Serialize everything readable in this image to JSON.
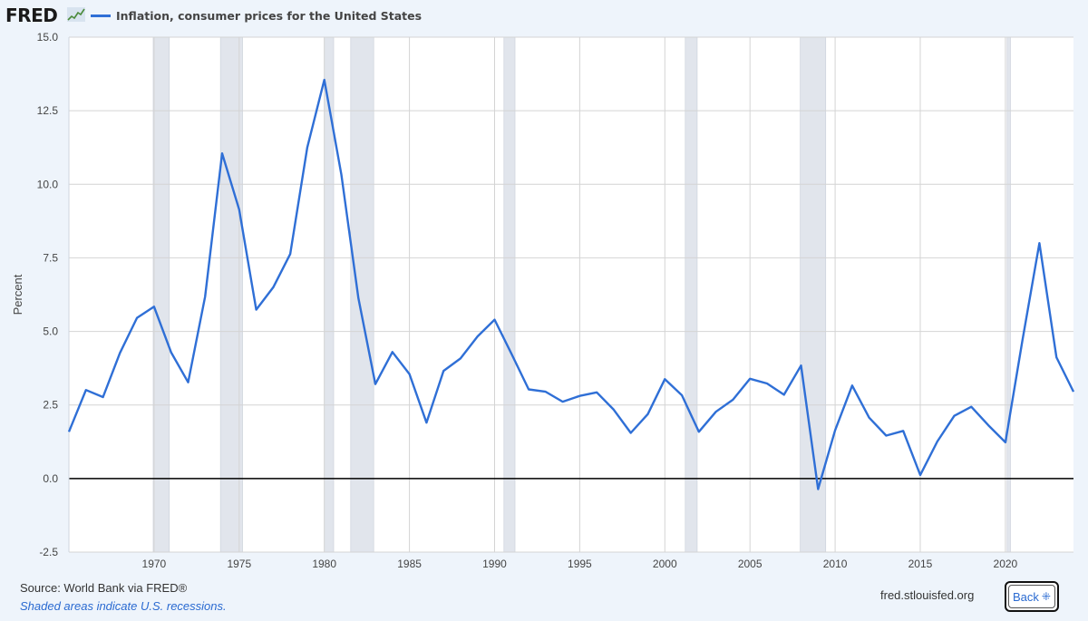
{
  "header": {
    "logo_text": "FRED",
    "legend_label": "Inflation, consumer prices for the United States"
  },
  "footer": {
    "source": "Source: World Bank via FRED®",
    "note": "Shaded areas indicate U.S. recessions.",
    "site": "fred.stlouisfed.org",
    "back_label": "Back"
  },
  "chart_data": {
    "type": "line",
    "title": "",
    "xlabel": "",
    "ylabel": "Percent",
    "xlim": [
      1965,
      2024
    ],
    "ylim": [
      -2.5,
      15.0
    ],
    "yticks": [
      "-2.5",
      "0.0",
      "2.5",
      "5.0",
      "7.5",
      "10.0",
      "12.5",
      "15.0"
    ],
    "xticks": [
      1970,
      1975,
      1980,
      1985,
      1990,
      1995,
      2000,
      2005,
      2010,
      2015,
      2020
    ],
    "grid": true,
    "colors": {
      "line": "#2f6fd6",
      "recession": "#e1e5ec",
      "zero_line": "#000000"
    },
    "recessions": [
      [
        1969.95,
        1970.9
      ],
      [
        1973.9,
        1975.2
      ],
      [
        1980.0,
        1980.55
      ],
      [
        1981.55,
        1982.9
      ],
      [
        1990.55,
        1991.2
      ],
      [
        2001.2,
        2001.9
      ],
      [
        2007.95,
        2009.45
      ],
      [
        2020.1,
        2020.3
      ]
    ],
    "series": [
      {
        "x": [
          1965,
          1966,
          1967,
          1968,
          1969,
          1970,
          1971,
          1972,
          1973,
          1974,
          1975,
          1976,
          1977,
          1978,
          1979,
          1980,
          1981,
          1982,
          1983,
          1984,
          1985,
          1986,
          1987,
          1988,
          1989,
          1990,
          1991,
          1992,
          1993,
          1994,
          1995,
          1996,
          1997,
          1998,
          1999,
          2000,
          2001,
          2002,
          2003,
          2004,
          2005,
          2006,
          2007,
          2008,
          2009,
          2010,
          2011,
          2012,
          2013,
          2014,
          2015,
          2016,
          2017,
          2018,
          2019,
          2020,
          2021,
          2022,
          2023,
          2024
        ],
        "values": [
          1.59,
          3.01,
          2.77,
          4.27,
          5.46,
          5.84,
          4.29,
          3.27,
          6.18,
          11.05,
          9.14,
          5.74,
          6.5,
          7.63,
          11.25,
          13.55,
          10.33,
          6.13,
          3.21,
          4.3,
          3.55,
          1.9,
          3.66,
          4.08,
          4.83,
          5.4,
          4.23,
          3.03,
          2.95,
          2.61,
          2.81,
          2.93,
          2.34,
          1.55,
          2.19,
          3.38,
          2.83,
          1.59,
          2.27,
          2.68,
          3.39,
          3.23,
          2.85,
          3.84,
          -0.36,
          1.64,
          3.16,
          2.07,
          1.46,
          1.62,
          0.12,
          1.26,
          2.13,
          2.44,
          1.81,
          1.23,
          4.7,
          8.0,
          4.12,
          2.95
        ]
      }
    ]
  }
}
